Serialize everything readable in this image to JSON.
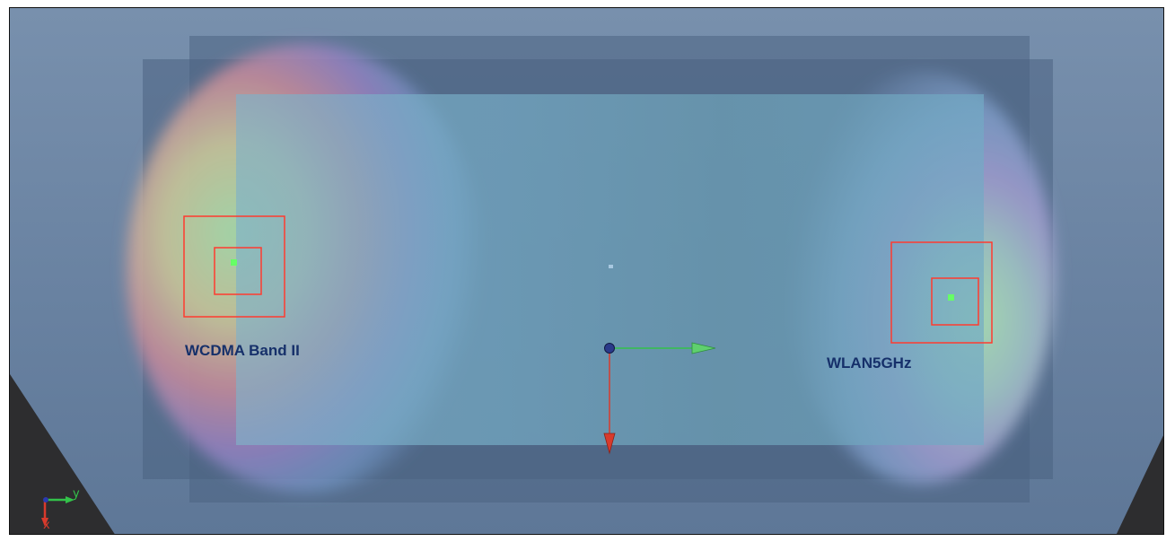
{
  "viewport": {
    "hotspot_labels": [
      "WCDMA Band II",
      "WLAN5GHz"
    ],
    "triad": {
      "x_label": "x",
      "y_label": "y"
    }
  },
  "colors": {
    "background": "#6f87a6",
    "board": "#6fa0b7",
    "measurement_box": "#ff3b2f",
    "peak_marker": "#66ff66",
    "axis_x": "#d83a2c",
    "axis_y": "#33c24a"
  }
}
